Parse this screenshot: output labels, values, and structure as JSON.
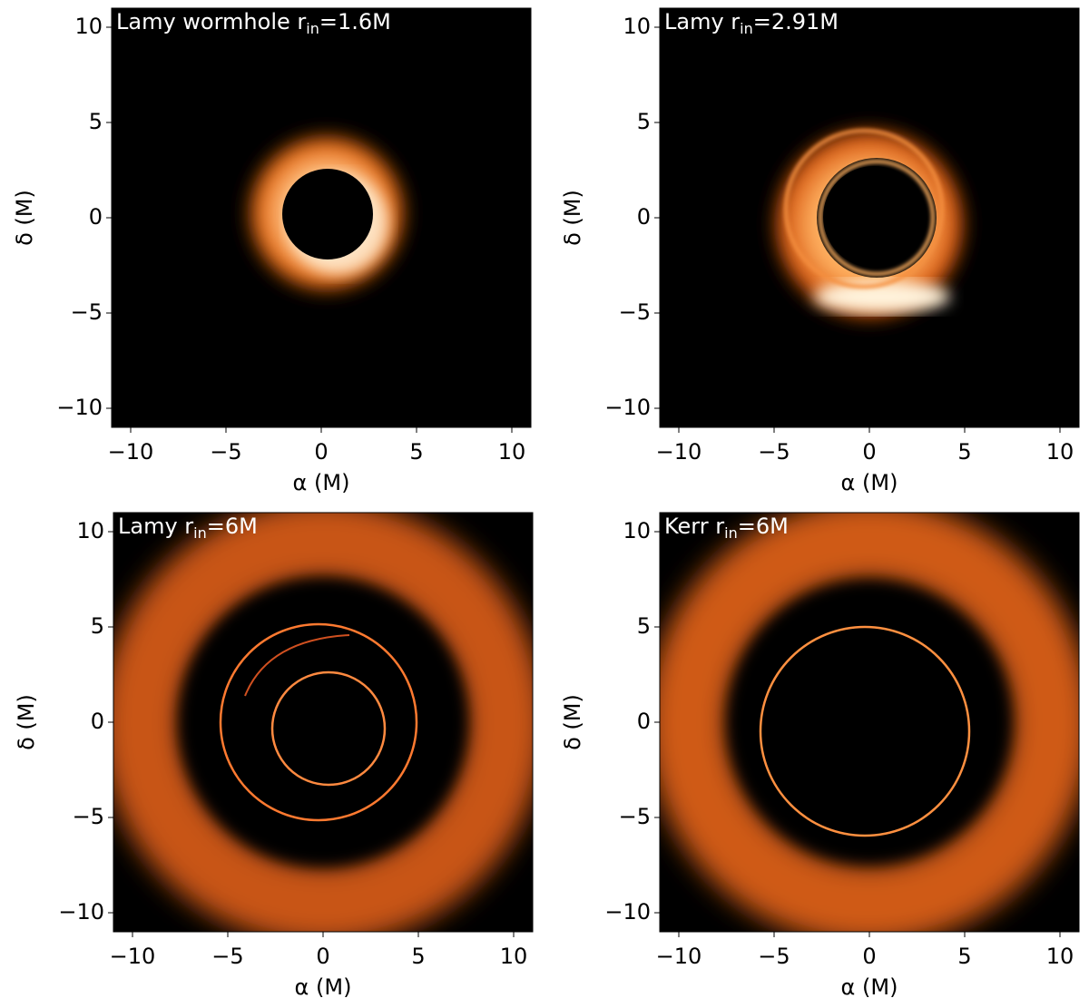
{
  "chart_data": [
    {
      "type": "image",
      "title": {
        "main": "Lamy wormhole r",
        "sub": "in",
        "rest": "=1.6M"
      },
      "xlabel": "α (M)",
      "ylabel": "δ (M)",
      "xlim": [
        -11,
        11
      ],
      "ylim": [
        -11,
        11
      ],
      "xticks": [
        {
          "value": -10,
          "label": "−10"
        },
        {
          "value": -5,
          "label": "−5"
        },
        0,
        5,
        10
      ],
      "yticks": [
        {
          "value": -10,
          "label": "−10"
        },
        {
          "value": -5,
          "label": "−5"
        },
        0,
        5,
        10
      ]
    },
    {
      "type": "image",
      "title": {
        "main": "Lamy r",
        "sub": "in",
        "rest": "=2.91M"
      },
      "xlabel": "α (M)",
      "ylabel": "δ (M)",
      "xlim": [
        -11,
        11
      ],
      "ylim": [
        -11,
        11
      ],
      "xticks": [
        {
          "value": -10,
          "label": "−10"
        },
        {
          "value": -5,
          "label": "−5"
        },
        0,
        5,
        10
      ],
      "yticks": [
        {
          "value": -10,
          "label": "−10"
        },
        {
          "value": -5,
          "label": "−5"
        },
        0,
        5,
        10
      ]
    },
    {
      "type": "image",
      "title": {
        "main": "Lamy r",
        "sub": "in",
        "rest": "=6M"
      },
      "xlabel": "α (M)",
      "ylabel": "δ (M)",
      "xlim": [
        -11,
        11
      ],
      "ylim": [
        -11,
        11
      ],
      "xticks": [
        {
          "value": -10,
          "label": "−10"
        },
        {
          "value": -5,
          "label": "−5"
        },
        0,
        5,
        10
      ],
      "yticks": [
        {
          "value": -10,
          "label": "−10"
        },
        {
          "value": -5,
          "label": "−5"
        },
        0,
        5,
        10
      ]
    },
    {
      "type": "image",
      "title": {
        "main": "Kerr r",
        "sub": "in",
        "rest": "=6M"
      },
      "xlabel": "α (M)",
      "ylabel": "δ (M)",
      "xlim": [
        -11,
        11
      ],
      "ylim": [
        -11,
        11
      ],
      "xticks": [
        {
          "value": -10,
          "label": "−10"
        },
        {
          "value": -5,
          "label": "−5"
        },
        0,
        5,
        10
      ],
      "yticks": [
        {
          "value": -10,
          "label": "−10"
        },
        {
          "value": -5,
          "label": "−5"
        },
        0,
        5,
        10
      ]
    }
  ]
}
